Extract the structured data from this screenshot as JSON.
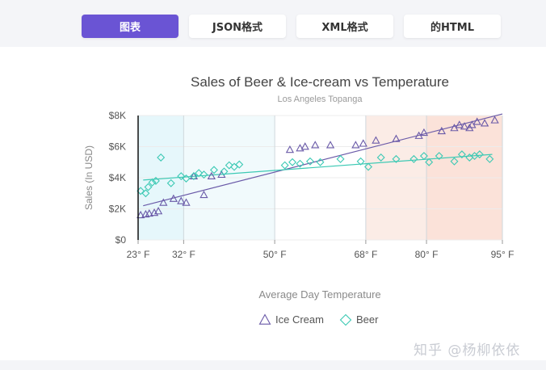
{
  "tabs": [
    {
      "label": "图表",
      "active": true
    },
    {
      "label": "JSON格式",
      "active": false
    },
    {
      "label": "XML格式",
      "active": false
    },
    {
      "label": "的HTML",
      "active": false
    }
  ],
  "colors": {
    "active_tab": "#6a54d4",
    "ice_cream": "#6a5aa8",
    "beer": "#3cc9b4",
    "band_cool": "#e6f7fb",
    "band_warm": "#fbe7df"
  },
  "watermark": "知乎 @杨柳依依",
  "chart_data": {
    "type": "scatter",
    "title": "Sales of Beer & Ice-cream vs Temperature",
    "subtitle": "Los Angeles Topanga",
    "xlabel": "Average Day Temperature",
    "ylabel": "Sales (In USD)",
    "xlim": [
      23,
      95
    ],
    "ylim": [
      0,
      8000
    ],
    "x_ticks": [
      23,
      32,
      50,
      68,
      80,
      95
    ],
    "x_tick_labels": [
      "23° F",
      "32° F",
      "50° F",
      "68° F",
      "80° F",
      "95° F"
    ],
    "y_ticks": [
      0,
      2000,
      4000,
      6000,
      8000
    ],
    "y_tick_labels": [
      "$0",
      "$2K",
      "$4K",
      "$6K",
      "$8K"
    ],
    "grid": true,
    "legend": "bottom-center",
    "bands": [
      {
        "from": 23,
        "to": 32,
        "color": "#e6f7fb"
      },
      {
        "from": 32,
        "to": 50,
        "color": "#f1fafc"
      },
      {
        "from": 68,
        "to": 80,
        "color": "#fbece6"
      },
      {
        "from": 80,
        "to": 95,
        "color": "#fbe2d9"
      }
    ],
    "series": [
      {
        "name": "Ice Cream",
        "marker": "triangle",
        "color": "#6a5aa8",
        "points": [
          [
            23.5,
            1600
          ],
          [
            24.5,
            1650
          ],
          [
            25.2,
            1700
          ],
          [
            26.2,
            1750
          ],
          [
            27.0,
            1850
          ],
          [
            28.0,
            2400
          ],
          [
            30.0,
            2650
          ],
          [
            31.5,
            2500
          ],
          [
            32.5,
            2400
          ],
          [
            34.0,
            4100
          ],
          [
            36.0,
            2900
          ],
          [
            37.5,
            4100
          ],
          [
            39.5,
            4200
          ],
          [
            53.0,
            5800
          ],
          [
            55.0,
            5900
          ],
          [
            56.0,
            6000
          ],
          [
            58.0,
            6100
          ],
          [
            61.0,
            6100
          ],
          [
            66.0,
            6100
          ],
          [
            67.5,
            6200
          ],
          [
            70.0,
            6400
          ],
          [
            74.0,
            6500
          ],
          [
            78.5,
            6700
          ],
          [
            79.5,
            6900
          ],
          [
            83.0,
            7000
          ],
          [
            85.5,
            7200
          ],
          [
            86.5,
            7400
          ],
          [
            87.5,
            7300
          ],
          [
            88.5,
            7200
          ],
          [
            89.0,
            7400
          ],
          [
            90.0,
            7600
          ],
          [
            91.5,
            7500
          ],
          [
            93.5,
            7700
          ]
        ],
        "trend": [
          [
            24,
            2200
          ],
          [
            95,
            8100
          ]
        ]
      },
      {
        "name": "Beer",
        "marker": "diamond",
        "color": "#3cc9b4",
        "points": [
          [
            23.5,
            3150
          ],
          [
            24.5,
            3000
          ],
          [
            25.0,
            3400
          ],
          [
            25.8,
            3700
          ],
          [
            26.5,
            3800
          ],
          [
            27.5,
            5300
          ],
          [
            29.5,
            3650
          ],
          [
            31.5,
            4100
          ],
          [
            32.5,
            3950
          ],
          [
            34.0,
            4100
          ],
          [
            35.0,
            4300
          ],
          [
            36.0,
            4200
          ],
          [
            38.0,
            4500
          ],
          [
            40.0,
            4400
          ],
          [
            41.0,
            4800
          ],
          [
            42.0,
            4700
          ],
          [
            43.0,
            4850
          ],
          [
            52.0,
            4800
          ],
          [
            53.5,
            5000
          ],
          [
            55.0,
            4900
          ],
          [
            57.0,
            5050
          ],
          [
            59.0,
            5000
          ],
          [
            63.0,
            5200
          ],
          [
            67.0,
            5050
          ],
          [
            68.5,
            4700
          ],
          [
            71.0,
            5300
          ],
          [
            74.0,
            5200
          ],
          [
            77.5,
            5200
          ],
          [
            79.5,
            5400
          ],
          [
            80.5,
            5000
          ],
          [
            82.5,
            5400
          ],
          [
            85.5,
            5050
          ],
          [
            87.0,
            5500
          ],
          [
            88.5,
            5300
          ],
          [
            89.5,
            5400
          ],
          [
            90.5,
            5500
          ],
          [
            92.5,
            5200
          ]
        ],
        "trend": [
          [
            24,
            3850
          ],
          [
            93,
            5500
          ]
        ]
      }
    ]
  }
}
